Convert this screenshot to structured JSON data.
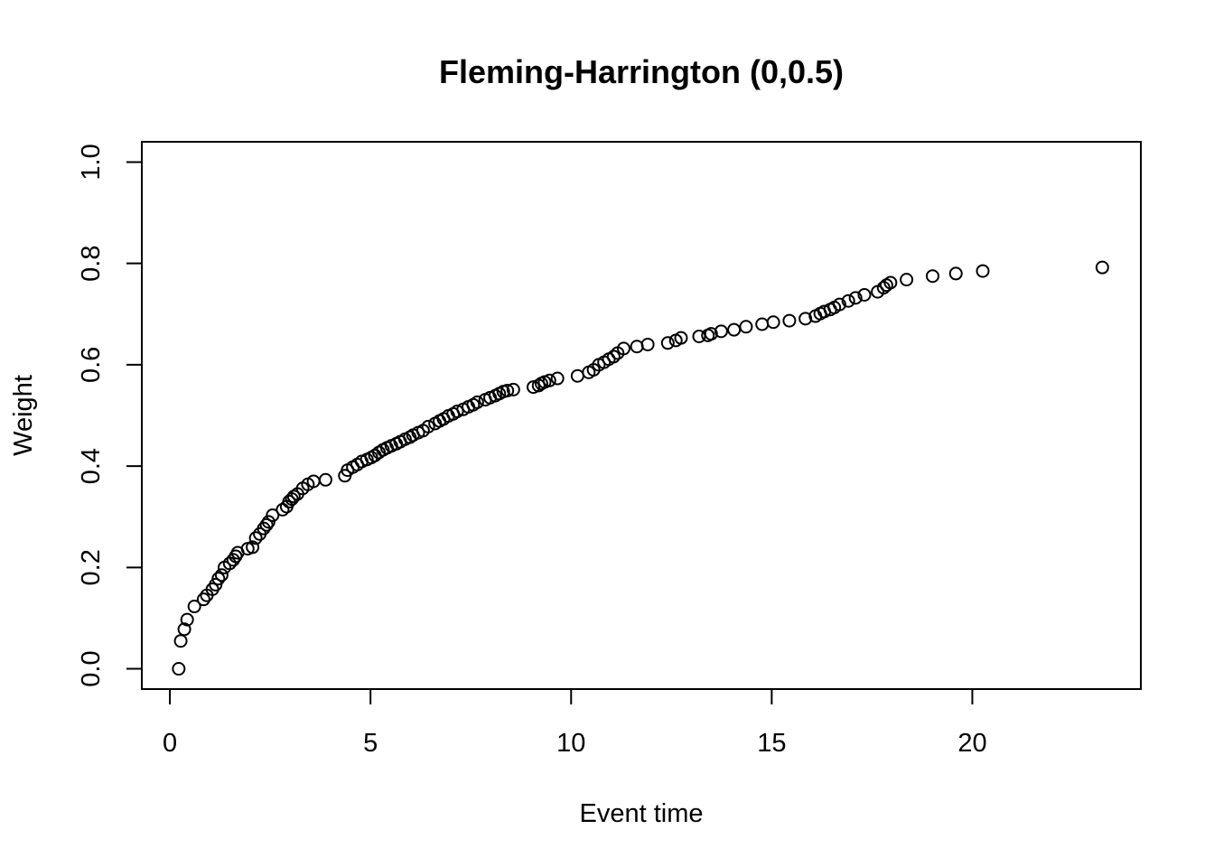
{
  "chart_data": {
    "type": "scatter",
    "title": "Fleming-Harrington (0,0.5)",
    "xlabel": "Event time",
    "ylabel": "Weight",
    "xlim": [
      -0.7,
      24.2
    ],
    "ylim": [
      -0.04,
      1.04
    ],
    "xticks": [
      0,
      5,
      10,
      15,
      20
    ],
    "yticks": [
      0.0,
      0.2,
      0.4,
      0.6,
      0.8,
      1.0
    ],
    "xtick_labels": [
      "0",
      "5",
      "10",
      "15",
      "20"
    ],
    "ytick_labels": [
      "0.0",
      "0.2",
      "0.4",
      "0.6",
      "0.8",
      "1.0"
    ],
    "grid": false,
    "point_style": "open-circle",
    "point_color": "#000000",
    "x": [
      0.22,
      0.27,
      0.36,
      0.43,
      0.61,
      0.84,
      0.92,
      1.06,
      1.14,
      1.21,
      1.29,
      1.36,
      1.49,
      1.58,
      1.64,
      1.69,
      1.94,
      2.06,
      2.14,
      2.24,
      2.34,
      2.41,
      2.46,
      2.56,
      2.81,
      2.91,
      2.97,
      3.04,
      3.09,
      3.18,
      3.31,
      3.44,
      3.58,
      3.88,
      4.36,
      4.43,
      4.56,
      4.67,
      4.78,
      4.91,
      5.02,
      5.11,
      5.21,
      5.31,
      5.41,
      5.52,
      5.64,
      5.74,
      5.86,
      5.98,
      6.06,
      6.19,
      6.31,
      6.44,
      6.61,
      6.72,
      6.82,
      6.94,
      7.06,
      7.16,
      7.31,
      7.44,
      7.56,
      7.66,
      7.86,
      7.98,
      8.11,
      8.21,
      8.31,
      8.41,
      8.56,
      9.06,
      9.19,
      9.26,
      9.34,
      9.46,
      9.66,
      10.16,
      10.44,
      10.56,
      10.69,
      10.82,
      10.94,
      11.06,
      11.16,
      11.31,
      11.64,
      11.91,
      12.41,
      12.61,
      12.74,
      13.19,
      13.41,
      13.49,
      13.74,
      14.06,
      14.36,
      14.76,
      15.04,
      15.44,
      15.84,
      16.09,
      16.21,
      16.31,
      16.46,
      16.56,
      16.69,
      16.91,
      17.09,
      17.31,
      17.64,
      17.79,
      17.86,
      17.96,
      18.36,
      19.01,
      19.59,
      20.26,
      23.24
    ],
    "values": [
      0.0,
      0.055,
      0.078,
      0.097,
      0.123,
      0.137,
      0.145,
      0.157,
      0.166,
      0.178,
      0.185,
      0.2,
      0.208,
      0.215,
      0.222,
      0.229,
      0.237,
      0.24,
      0.258,
      0.266,
      0.277,
      0.284,
      0.29,
      0.303,
      0.314,
      0.32,
      0.33,
      0.335,
      0.34,
      0.345,
      0.356,
      0.364,
      0.37,
      0.373,
      0.381,
      0.392,
      0.398,
      0.403,
      0.409,
      0.413,
      0.417,
      0.421,
      0.427,
      0.432,
      0.436,
      0.44,
      0.444,
      0.448,
      0.453,
      0.457,
      0.461,
      0.466,
      0.47,
      0.478,
      0.484,
      0.489,
      0.493,
      0.499,
      0.503,
      0.508,
      0.512,
      0.517,
      0.521,
      0.526,
      0.531,
      0.535,
      0.539,
      0.543,
      0.547,
      0.549,
      0.551,
      0.556,
      0.559,
      0.563,
      0.566,
      0.569,
      0.573,
      0.578,
      0.585,
      0.59,
      0.6,
      0.605,
      0.611,
      0.616,
      0.623,
      0.632,
      0.636,
      0.64,
      0.643,
      0.648,
      0.653,
      0.656,
      0.658,
      0.661,
      0.666,
      0.669,
      0.675,
      0.68,
      0.684,
      0.687,
      0.691,
      0.696,
      0.701,
      0.705,
      0.709,
      0.713,
      0.719,
      0.726,
      0.732,
      0.738,
      0.744,
      0.752,
      0.757,
      0.762,
      0.768,
      0.775,
      0.78,
      0.785,
      0.792
    ]
  }
}
